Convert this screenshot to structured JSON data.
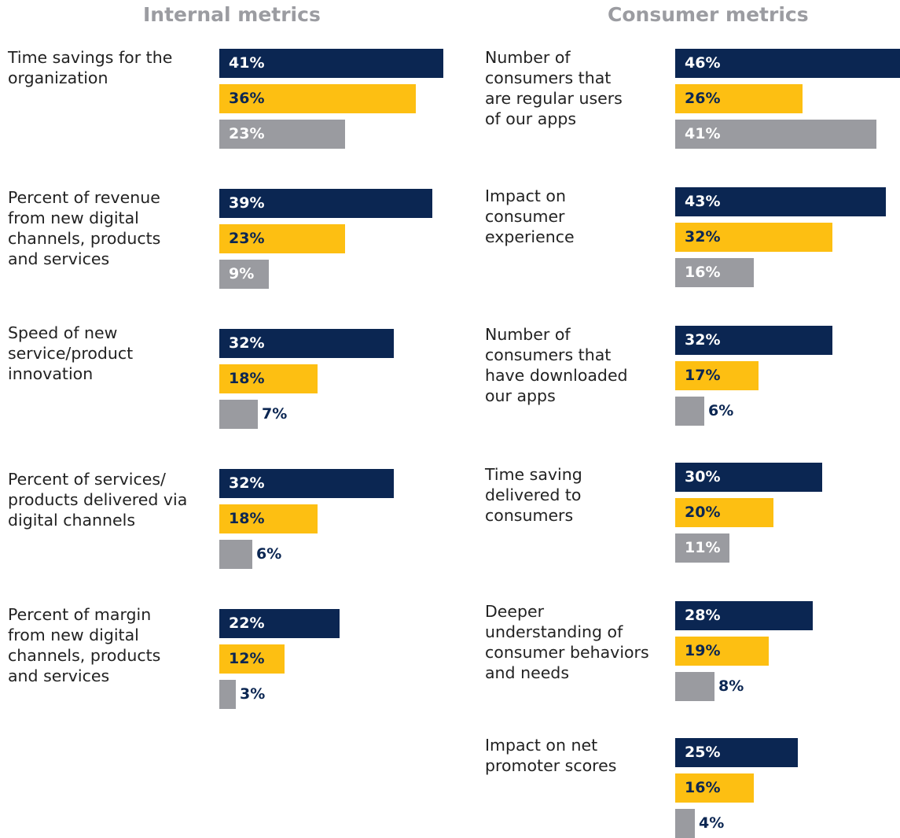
{
  "colors": {
    "series_a": "#0b2652",
    "series_b": "#fdbf12",
    "series_c": "#9a9ba0",
    "title": "#9b9ca1",
    "label_text": "#222222",
    "value_inside": "#ffffff",
    "value_outside": "#0b2652",
    "value_on_yellow": "#0b2652"
  },
  "chart_data": [
    {
      "type": "bar",
      "orientation": "horizontal",
      "title": "Internal metrics",
      "value_unit": "%",
      "series_count": 3,
      "categories": [
        "Time savings for the\norganization",
        "Percent of revenue\nfrom new digital\nchannels, products\nand services",
        "Speed of new\nservice/product\ninnovation",
        "Percent of services/\nproducts delivered via\ndigital channels",
        "Percent of margin\nfrom new digital\nchannels, products\nand services"
      ],
      "series": [
        {
          "values": [
            41,
            39,
            32,
            32,
            22
          ]
        },
        {
          "values": [
            36,
            23,
            18,
            18,
            12
          ]
        },
        {
          "values": [
            23,
            9,
            7,
            6,
            3
          ]
        }
      ],
      "value_labels": [
        [
          "41%",
          "36%",
          "23%"
        ],
        [
          "39%",
          "23%",
          "9%"
        ],
        [
          "32%",
          "18%",
          "7%"
        ],
        [
          "32%",
          "18%",
          "6%"
        ],
        [
          "22%",
          "12%",
          "3%"
        ]
      ],
      "legend": "none",
      "grid": false,
      "xlim": [
        0,
        41
      ]
    },
    {
      "type": "bar",
      "orientation": "horizontal",
      "title": "Consumer metrics",
      "value_unit": "%",
      "series_count": 3,
      "categories": [
        "Number of\nconsumers that\nare regular users\nof our apps",
        "Impact on\nconsumer\nexperience",
        "Number of\nconsumers that\nhave downloaded\nour apps",
        "Time saving\ndelivered to\nconsumers",
        "Deeper\nunderstanding of\nconsumer behaviors\nand needs",
        "Impact on net\npromoter scores"
      ],
      "series": [
        {
          "values": [
            46,
            43,
            32,
            30,
            28,
            25
          ]
        },
        {
          "values": [
            26,
            32,
            17,
            20,
            19,
            16
          ]
        },
        {
          "values": [
            41,
            16,
            6,
            11,
            8,
            4
          ]
        }
      ],
      "value_labels": [
        [
          "46%",
          "26%",
          "41%"
        ],
        [
          "43%",
          "32%",
          "16%"
        ],
        [
          "32%",
          "17%",
          "6%"
        ],
        [
          "30%",
          "20%",
          "11%"
        ],
        [
          "28%",
          "19%",
          "8%"
        ],
        [
          "25%",
          "16%",
          "4%"
        ]
      ],
      "legend": "none",
      "grid": false,
      "xlim": [
        0,
        46
      ]
    }
  ]
}
